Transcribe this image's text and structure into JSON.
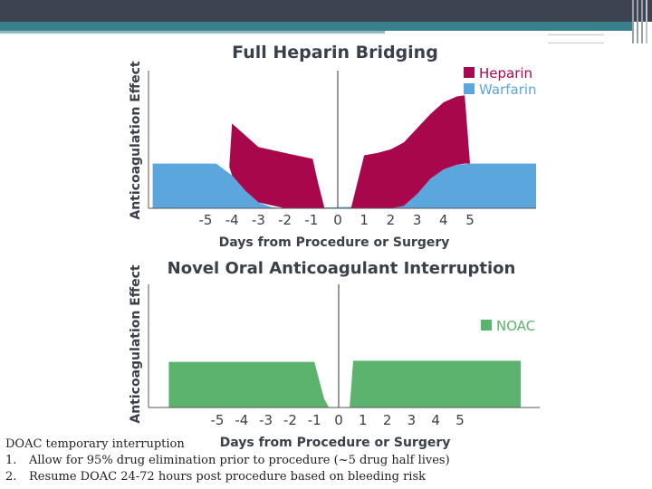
{
  "slide": {
    "note_title": "DOAC temporary  interruption",
    "notes": [
      {
        "num": "1.",
        "text": "Allow for 95% drug elimination prior to procedure (~5 drug half lives)"
      },
      {
        "num": "2.",
        "text": "Resume DOAC 24-72 hours post procedure based on bleeding risk"
      }
    ]
  },
  "colors": {
    "heparin": "#a8084b",
    "warfarin": "#5ba6dc",
    "noac": "#5cb36e",
    "axis": "#555555",
    "text": "#3a3f4a"
  },
  "chart_data": [
    {
      "type": "area",
      "title": "Full Heparin Bridging",
      "ylabel": "Anticoagulation Effect",
      "xlabel": "Days from Procedure or Surgery",
      "xticks": [
        "-5",
        "-4",
        "-3",
        "-2",
        "-1",
        "0",
        "1",
        "2",
        "3",
        "4",
        "5"
      ],
      "xlim": [
        -7.0,
        7.5
      ],
      "ylim": [
        0,
        1
      ],
      "legend_position": "top-right",
      "series": [
        {
          "name": "Heparin",
          "x": [
            -4.1,
            -4.0,
            -3.5,
            -3.0,
            -2.0,
            -0.95,
            -0.75,
            -0.5,
            0.5,
            1.0,
            1.5,
            2.0,
            2.5,
            3.0,
            3.5,
            4.0,
            4.5,
            4.8,
            5.0
          ],
          "upper": [
            0.36,
            0.72,
            0.62,
            0.52,
            0.47,
            0.42,
            0.22,
            0.0,
            0.0,
            0.45,
            0.47,
            0.5,
            0.56,
            0.68,
            0.8,
            0.9,
            0.95,
            0.96,
            0.38
          ],
          "lower": [
            0.35,
            0.28,
            0.15,
            0.05,
            0.0,
            0.0,
            0.0,
            0.0,
            0.0,
            0.0,
            0.0,
            0.0,
            0.02,
            0.12,
            0.25,
            0.33,
            0.37,
            0.38,
            0.38
          ]
        },
        {
          "name": "Warfarin",
          "x": [
            -7.0,
            -4.6,
            -4.0,
            -3.5,
            -3.0,
            -2.5,
            -2.0,
            2.5,
            3.0,
            3.5,
            4.0,
            4.5,
            5.0,
            7.5
          ],
          "y": [
            0.38,
            0.38,
            0.28,
            0.15,
            0.05,
            0.01,
            0.0,
            0.02,
            0.12,
            0.25,
            0.33,
            0.37,
            0.38,
            0.38
          ]
        }
      ]
    },
    {
      "type": "area",
      "title": "Novel Oral Anticoagulant Interruption",
      "ylabel": "Anticoagulation Effect",
      "xlabel": "Days from Procedure or Surgery",
      "xticks": [
        "-5",
        "-4",
        "-3",
        "-2",
        "-1",
        "0",
        "1",
        "2",
        "3",
        "4",
        "5"
      ],
      "xlim": [
        -7.0,
        7.5
      ],
      "ylim": [
        0,
        1
      ],
      "legend_position": "right",
      "series": [
        {
          "name": "NOAC",
          "x": [
            -7.0,
            -1.0,
            -0.6,
            -0.4,
            -0.05,
            0.45,
            0.6,
            7.5
          ],
          "y": [
            0.42,
            0.42,
            0.08,
            0.0,
            0.0,
            0.0,
            0.43,
            0.43
          ]
        }
      ]
    }
  ]
}
